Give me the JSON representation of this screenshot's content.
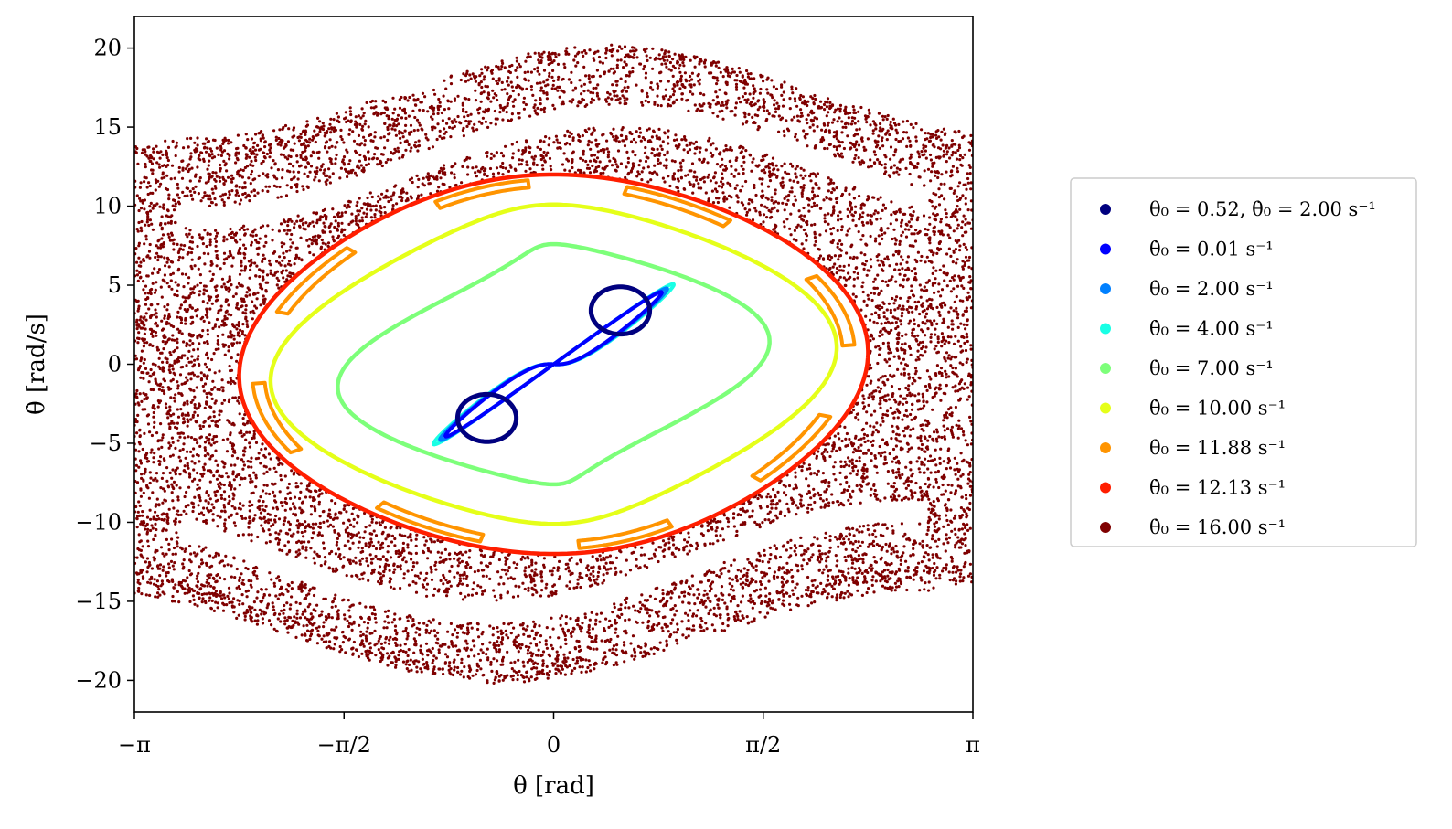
{
  "chart_data": {
    "type": "scatter",
    "title": "",
    "xlabel": "θ [rad]",
    "ylabel": "θ̇ [rad/s]",
    "xlim": [
      -3.14159,
      3.14159
    ],
    "ylim": [
      -22,
      22
    ],
    "x_ticks": [
      {
        "value": -3.14159,
        "label": "−π"
      },
      {
        "value": -1.5708,
        "label": "−π/2"
      },
      {
        "value": 0,
        "label": "0"
      },
      {
        "value": 1.5708,
        "label": "π/2"
      },
      {
        "value": 3.14159,
        "label": "π"
      }
    ],
    "y_ticks": [
      {
        "value": 20,
        "label": "20"
      },
      {
        "value": 15,
        "label": "15"
      },
      {
        "value": 10,
        "label": "10"
      },
      {
        "value": 5,
        "label": "5"
      },
      {
        "value": 0,
        "label": "0"
      },
      {
        "value": -5,
        "label": "−5"
      },
      {
        "value": -10,
        "label": "−10"
      },
      {
        "value": -15,
        "label": "−15"
      },
      {
        "value": -20,
        "label": "−20"
      }
    ],
    "grid": false,
    "legend_position": "outside-right",
    "series": [
      {
        "name": "θ₀ = 0.52, θ̇₀ = 2.00 s⁻¹",
        "color": "#00007f",
        "kind": "two-lobes",
        "lobes": [
          {
            "cx": 0.5,
            "cy": 3.4,
            "rx": 0.22,
            "ry": 1.5
          },
          {
            "cx": -0.5,
            "cy": -3.4,
            "rx": 0.22,
            "ry": 1.5
          }
        ]
      },
      {
        "name": "θ̇₀ = 0.01 s⁻¹",
        "color": "#0000ff",
        "kind": "separatrix",
        "scale": 1.0
      },
      {
        "name": "θ̇₀ = 2.00 s⁻¹",
        "color": "#0080ff",
        "kind": "separatrix",
        "scale": 1.05
      },
      {
        "name": "θ̇₀ = 4.00 s⁻¹",
        "color": "#19ffe5",
        "kind": "separatrix",
        "scale": 1.11
      },
      {
        "name": "θ̇₀ = 7.00 s⁻¹",
        "color": "#7dff7a",
        "kind": "loop",
        "ring": {
          "cx": 0,
          "cy": 0,
          "r": 7.6,
          "ax": 1.1,
          "bx": 0.45,
          "bxs": 0.35
        }
      },
      {
        "name": "θ̇₀ = 10.00 s⁻¹",
        "color": "#e5ff19",
        "kind": "loop",
        "ring": {
          "cx": 0,
          "cy": 0,
          "r": 10.1,
          "ax": 1.7,
          "bx": 0.4,
          "bxs": 0.2
        }
      },
      {
        "name": "θ̇₀ = 11.88 s⁻¹",
        "color": "#ff9400",
        "kind": "islands"
      },
      {
        "name": "θ̇₀ = 12.13 s⁻¹",
        "color": "#ff1e00",
        "kind": "loop",
        "ring": {
          "cx": 0,
          "cy": 0,
          "r": 12.0,
          "ax": 2.15,
          "bx": 0.2,
          "bxs": 0.1
        }
      },
      {
        "name": "θ̇₀ = 16.00 s⁻¹",
        "color": "#7f0000",
        "kind": "chaotic-sea",
        "points": 9000
      }
    ]
  }
}
